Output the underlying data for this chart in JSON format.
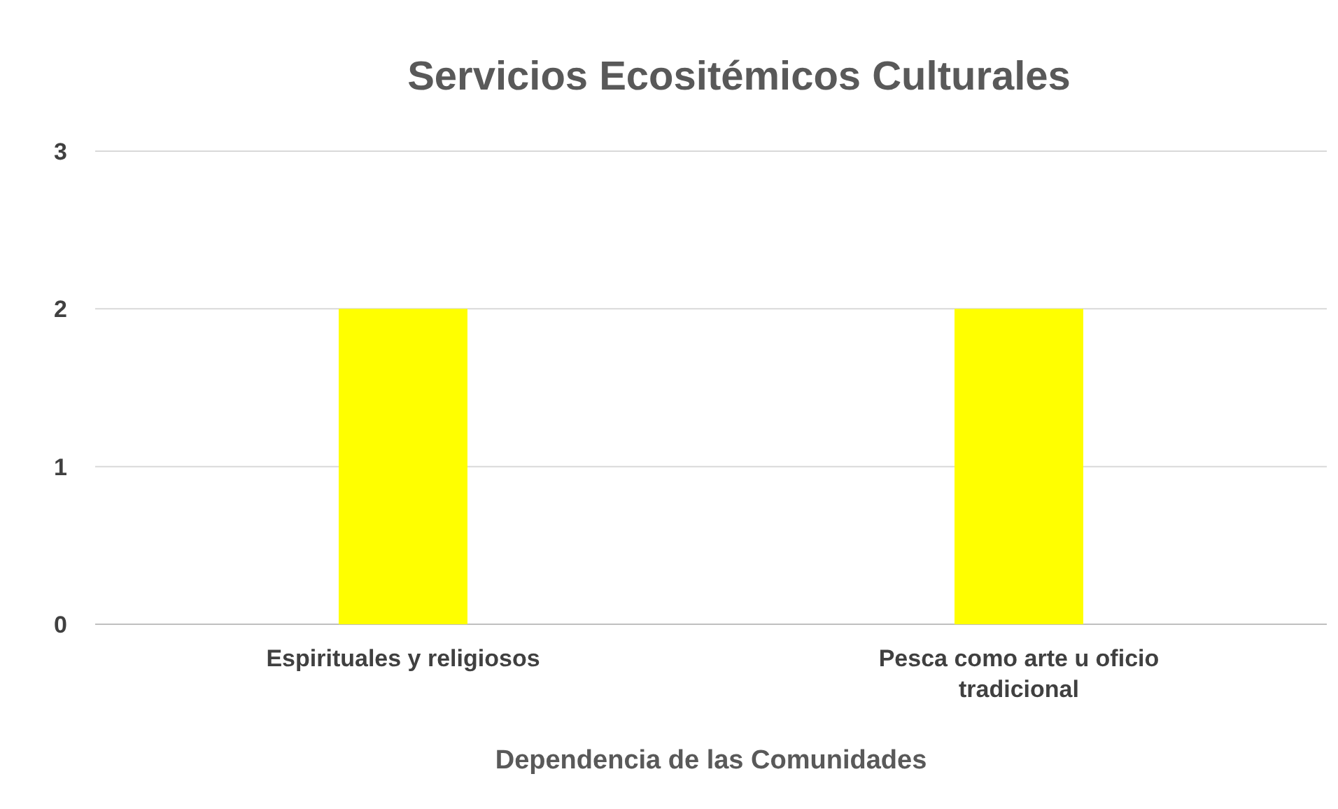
{
  "chart_data": {
    "type": "bar",
    "title": "Servicios Ecositémicos Culturales",
    "xlabel": "Dependencia de las Comunidades",
    "categories": [
      "Espirituales y religiosos",
      "Pesca como arte u oficio tradicional"
    ],
    "values": [
      2,
      2
    ],
    "color": "#ffff00",
    "ylim": [
      0,
      3
    ],
    "yticks": [
      0,
      1,
      2,
      3
    ],
    "grid": "y"
  }
}
